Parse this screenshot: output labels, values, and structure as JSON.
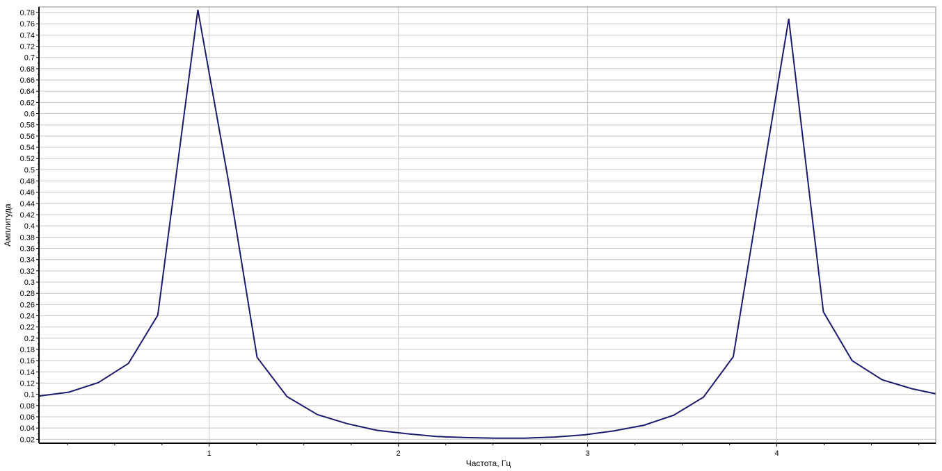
{
  "chart_data": {
    "type": "line",
    "title": "",
    "xlabel": "Частота, Гц",
    "ylabel": "Амплитуда",
    "xlim": [
      0.1,
      4.84
    ],
    "ylim": [
      0.013,
      0.79
    ],
    "x_ticks": [
      1,
      2,
      3,
      4
    ],
    "y_ticks": [
      0.02,
      0.04,
      0.06,
      0.08,
      0.1,
      0.12,
      0.14,
      0.16,
      0.18,
      0.2,
      0.22,
      0.24,
      0.26,
      0.28,
      0.3,
      0.32,
      0.34,
      0.36,
      0.38,
      0.4,
      0.42,
      0.44,
      0.46,
      0.48,
      0.5,
      0.52,
      0.54,
      0.56,
      0.58,
      0.6,
      0.62,
      0.64,
      0.66,
      0.68,
      0.7,
      0.72,
      0.74,
      0.76,
      0.78
    ],
    "grid": true,
    "line_color": "#1a1a6e",
    "series": [
      {
        "x": [
          0.1,
          0.259,
          0.414,
          0.573,
          0.728,
          0.94,
          1.1,
          1.253,
          1.411,
          1.572,
          1.727,
          1.885,
          2.041,
          2.199,
          2.356,
          2.514,
          2.669,
          2.827,
          2.985,
          3.14,
          3.298,
          3.456,
          3.612,
          3.77,
          3.928,
          4.063,
          4.246,
          4.398,
          4.557,
          4.715,
          4.84
        ],
        "y": [
          0.097,
          0.104,
          0.121,
          0.155,
          0.241,
          0.785,
          0.483,
          0.166,
          0.096,
          0.064,
          0.048,
          0.036,
          0.03,
          0.025,
          0.023,
          0.022,
          0.022,
          0.024,
          0.028,
          0.035,
          0.045,
          0.063,
          0.095,
          0.167,
          0.494,
          0.769,
          0.247,
          0.16,
          0.126,
          0.11,
          0.101
        ]
      }
    ]
  }
}
